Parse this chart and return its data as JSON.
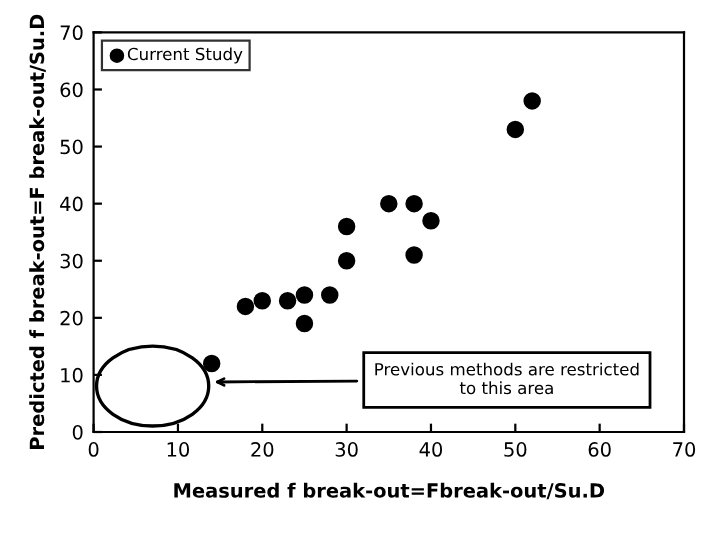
{
  "chart_data": {
    "type": "scatter",
    "xlabel": "Measured f break-out=Fbreak-out/Su.D",
    "ylabel": "Predicted f break-out=F break-out/Su.D",
    "series": [
      {
        "name": "Current Study",
        "color": "#000000",
        "x": [
          14,
          18,
          20,
          23,
          25,
          25,
          28,
          30,
          30,
          35,
          38,
          38,
          40,
          50,
          52
        ],
        "values": [
          12,
          22,
          23,
          23,
          24,
          19,
          24,
          30,
          36,
          40,
          40,
          31,
          37,
          53,
          58
        ]
      }
    ],
    "xlim": [
      0,
      70
    ],
    "ylim": [
      0,
      70
    ],
    "xticks": [
      0,
      10,
      20,
      30,
      40,
      50,
      60,
      70
    ],
    "yticks": [
      0,
      10,
      20,
      30,
      40,
      50,
      60,
      70
    ],
    "grid": false,
    "legend": "top left",
    "marker": "circle",
    "annotations": [
      "Previous methods are restricted\nto this area"
    ]
  }
}
